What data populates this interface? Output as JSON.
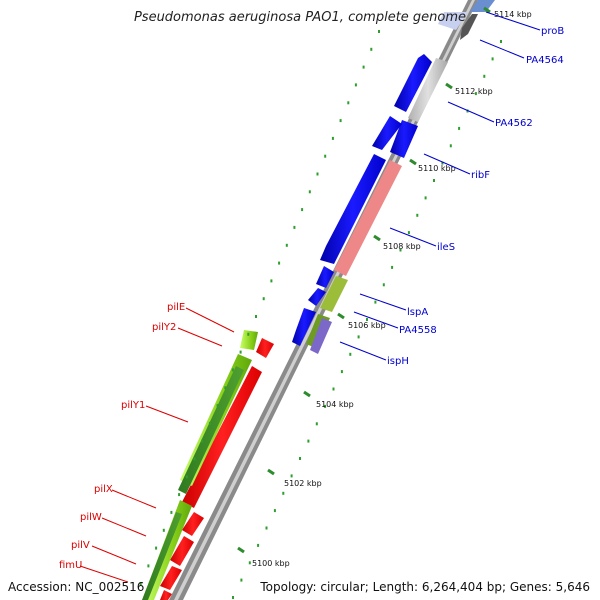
{
  "title": "Pseudomonas aeruginosa PAO1, complete genome",
  "footer": {
    "accession": "Accession: NC_002516",
    "summary": "Topology: circular; Length: 6,264,404 bp; Genes: 5,646"
  },
  "colors": {
    "backbone": "#9e9e9e",
    "tick": "#2e8b2e",
    "dots": "#2e9e2e",
    "forward_label": "#0000cc",
    "reverse_label": "#dd0000"
  },
  "ticks": [
    {
      "label": "5114 kbp"
    },
    {
      "label": "5112 kbp"
    },
    {
      "label": "5110 kbp"
    },
    {
      "label": "5108 kbp"
    },
    {
      "label": "5106 kbp"
    },
    {
      "label": "5104 kbp"
    },
    {
      "label": "5102 kbp"
    },
    {
      "label": "5100 kbp"
    }
  ],
  "forward_labels": [
    {
      "name": "proB",
      "color": "#0000cc"
    },
    {
      "name": "PA4564",
      "color": "#0000cc"
    },
    {
      "name": "PA4562",
      "color": "#0000cc"
    },
    {
      "name": "ribF",
      "color": "#0000cc"
    },
    {
      "name": "ileS",
      "color": "#0000cc"
    },
    {
      "name": "lspA",
      "color": "#0000cc"
    },
    {
      "name": "PA4558",
      "color": "#0000cc"
    },
    {
      "name": "ispH",
      "color": "#0000cc"
    }
  ],
  "reverse_labels": [
    {
      "name": "pilE",
      "color": "#dd0000"
    },
    {
      "name": "pilY2",
      "color": "#dd0000"
    },
    {
      "name": "pilY1",
      "color": "#dd0000"
    },
    {
      "name": "pilX",
      "color": "#dd0000"
    },
    {
      "name": "pilW",
      "color": "#dd0000"
    },
    {
      "name": "pilV",
      "color": "#dd0000"
    },
    {
      "name": "fimU",
      "color": "#dd0000"
    }
  ]
}
